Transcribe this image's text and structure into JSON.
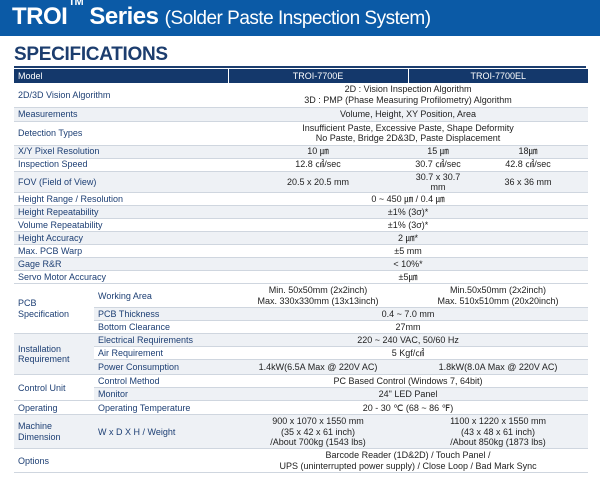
{
  "header": {
    "brand": "TROI",
    "tm": "TM",
    "series": " Series",
    "subtitle": "(Solder Paste Inspection System)"
  },
  "section_title": "SPECIFICATIONS",
  "columns": {
    "model": "Model",
    "m1": "TROI-7700E",
    "m2": "TROI-7700EL"
  },
  "rows": {
    "vision": {
      "label": "2D/3D Vision Algorithm",
      "v1": "2D : Vision Inspection Algorithm",
      "v2": "3D : PMP (Phase Measuring Profilometry) Algorithm"
    },
    "meas": {
      "label": "Measurements",
      "v": "Volume, Height, XY Position, Area"
    },
    "defect": {
      "label": "Detection Types",
      "v1": "Insufficient Paste, Excessive Paste, Shape Deformity",
      "v2": "No Paste, Bridge 2D&3D, Paste Displacement"
    },
    "pixel": {
      "label": "X/Y Pixel Resolution",
      "a": "10 ㎛",
      "b": "15 ㎛",
      "c": "18㎛"
    },
    "speed": {
      "label": "Inspection Speed",
      "a": "12.8 ㎠/sec",
      "b": "30.7 ㎠/sec",
      "c": "42.8 ㎠/sec"
    },
    "fov": {
      "label": "FOV (Field of View)",
      "a": "20.5 x 20.5 mm",
      "b": "30.7 x 30.7 mm",
      "c": "36 x 36 mm"
    },
    "hrange": {
      "label": "Height Range / Resolution",
      "v": "0 ~ 450 ㎛ / 0.4 ㎛"
    },
    "hrep": {
      "label": "Height Repeatability",
      "v": "±1% (3σ)*"
    },
    "vrep": {
      "label": "Volume Repeatability",
      "v": "±1% (3σ)*"
    },
    "hacc": {
      "label": "Height Accuracy",
      "v": "2 ㎛*"
    },
    "warp": {
      "label": "Max. PCB Warp",
      "v": "±5 mm"
    },
    "gage": {
      "label": "Gage R&R",
      "v": "< 10%*"
    },
    "servo": {
      "label": "Servo Motor  Accuracy",
      "v": "±5㎛"
    }
  },
  "pcb": {
    "label": "PCB Specification",
    "work": {
      "label": "Working Area",
      "e": "Min. 50x50mm (2x2inch)",
      "e2": "Max. 330x330mm (13x13inch)",
      "el": "Min.50x50mm (2x2inch)",
      "el2": "Max. 510x510mm (20x20inch)"
    },
    "thick": {
      "label": "PCB Thickness",
      "v": "0.4 ~ 7.0 mm"
    },
    "clear": {
      "label": "Bottom Clearance",
      "v": "27mm"
    }
  },
  "install": {
    "label": "Installation Requirement",
    "elec": {
      "label": "Electrical Requirements",
      "v": "220 ~ 240 VAC, 50/60 Hz"
    },
    "air": {
      "label": "Air Requirement",
      "v": "5 Kgf/㎠"
    },
    "power": {
      "label": "Power   Consumption",
      "e": "1.4kW(6.5A Max @ 220V AC)",
      "el": "1.8kW(8.0A Max @ 220V AC)"
    }
  },
  "control": {
    "label": "Control Unit",
    "method": {
      "label": "Control Method",
      "v": "PC Based Control (Windows 7, 64bit)"
    },
    "monitor": {
      "label": "Monitor",
      "v": "24\" LED Panel"
    }
  },
  "operating": {
    "label": "Operating",
    "sub": "Operating Temperature",
    "v": "20 - 30 ℃ (68 ~ 86 ℉)"
  },
  "machine": {
    "label": "Machine Dimension",
    "sub": "W x D X H / Weight",
    "e1": "900 x 1070 x 1550 mm",
    "e2": "(35 x 42 x 61 inch)",
    "e3": "/About 700kg (1543 lbs)",
    "el1": "1100 x 1220 x 1550 mm",
    "el2": "(43 x 48 x 61 inch)",
    "el3": "/About 850kg (1873 lbs)"
  },
  "options": {
    "label": "Options",
    "v1": "Barcode Reader (1D&2D) / Touch Panel /",
    "v2": "UPS (uninterrupted power supply) / Close Loop / Bad Mark Sync"
  }
}
